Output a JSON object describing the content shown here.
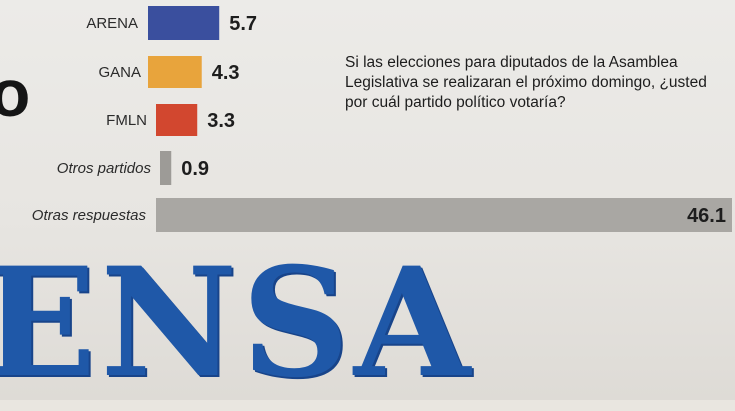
{
  "question": "Si las elecciones para diputados de la Asamblea Legislativa se realizaran el próximo domingo, ¿usted por cuál partido político votaría?",
  "masthead": "ENSA",
  "chart_data": {
    "type": "bar",
    "orientation": "horizontal",
    "categories": [
      "ARENA",
      "GANA",
      "FMLN",
      "Otros partidos",
      "Otras respuestas"
    ],
    "values": [
      5.7,
      4.3,
      3.3,
      0.9,
      46.1
    ],
    "value_labels": [
      "5.7",
      "4.3",
      "3.3",
      "0.9",
      "46.1"
    ],
    "colors": [
      "#3a4f9e",
      "#e8a43c",
      "#d2472f",
      "#9d9b97",
      "#a9a7a3"
    ],
    "xlim": [
      0,
      46.1
    ],
    "grid": false,
    "legend": "none"
  }
}
